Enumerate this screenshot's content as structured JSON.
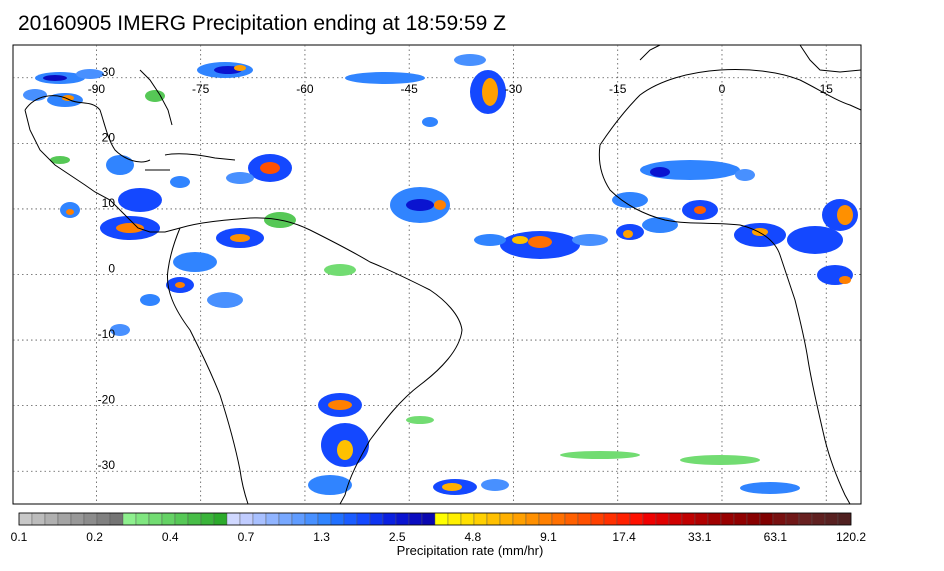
{
  "title": "20160905 IMERG Precipitation ending at 18:59:59 Z",
  "map": {
    "lon_labels": [
      "-90",
      "-75",
      "-60",
      "-45",
      "-30",
      "-15",
      "0",
      "15"
    ],
    "lon_values": [
      -90,
      -75,
      -60,
      -45,
      -30,
      -15,
      0,
      15
    ],
    "lat_labels": [
      "30",
      "20",
      "10",
      "0",
      "-10",
      "-20",
      "-30"
    ],
    "lat_values": [
      30,
      20,
      10,
      0,
      -10,
      -20,
      -30
    ],
    "lon_range": [
      -102,
      20
    ],
    "lat_range": [
      35,
      -35
    ],
    "grid": "dotted"
  },
  "colorbar": {
    "title": "Precipitation rate (mm/hr)",
    "tick_labels": [
      "0.1",
      "0.2",
      "0.4",
      "0.7",
      "1.3",
      "2.5",
      "4.8",
      "9.1",
      "17.4",
      "33.1",
      "63.1",
      "120.2"
    ],
    "colors": [
      "#c8c8c8",
      "#bcbcbc",
      "#b0b0b0",
      "#a4a4a4",
      "#989898",
      "#8c8c8c",
      "#808080",
      "#747474",
      "#8ef08e",
      "#80e680",
      "#72dc72",
      "#64d264",
      "#56c856",
      "#48be48",
      "#3ab43a",
      "#2caa2c",
      "#d0d8ff",
      "#c0ccff",
      "#a8c0ff",
      "#90b4ff",
      "#78a8ff",
      "#609cff",
      "#4890ff",
      "#3084ff",
      "#2070ff",
      "#1a5cff",
      "#1448ff",
      "#0e34f0",
      "#0a20e0",
      "#0a14d0",
      "#0a0cc0",
      "#0a08b0",
      "#ffff00",
      "#fff000",
      "#ffe000",
      "#ffd000",
      "#ffc000",
      "#ffb000",
      "#ffa000",
      "#ff9000",
      "#ff8000",
      "#ff7000",
      "#ff6000",
      "#ff5000",
      "#ff4000",
      "#ff3000",
      "#ff2000",
      "#ff1000",
      "#f00000",
      "#e00000",
      "#d00000",
      "#c00000",
      "#b00000",
      "#a00000",
      "#980000",
      "#900000",
      "#880000",
      "#800000",
      "#781010",
      "#701818",
      "#682020",
      "#602020",
      "#582020",
      "#502020"
    ]
  }
}
